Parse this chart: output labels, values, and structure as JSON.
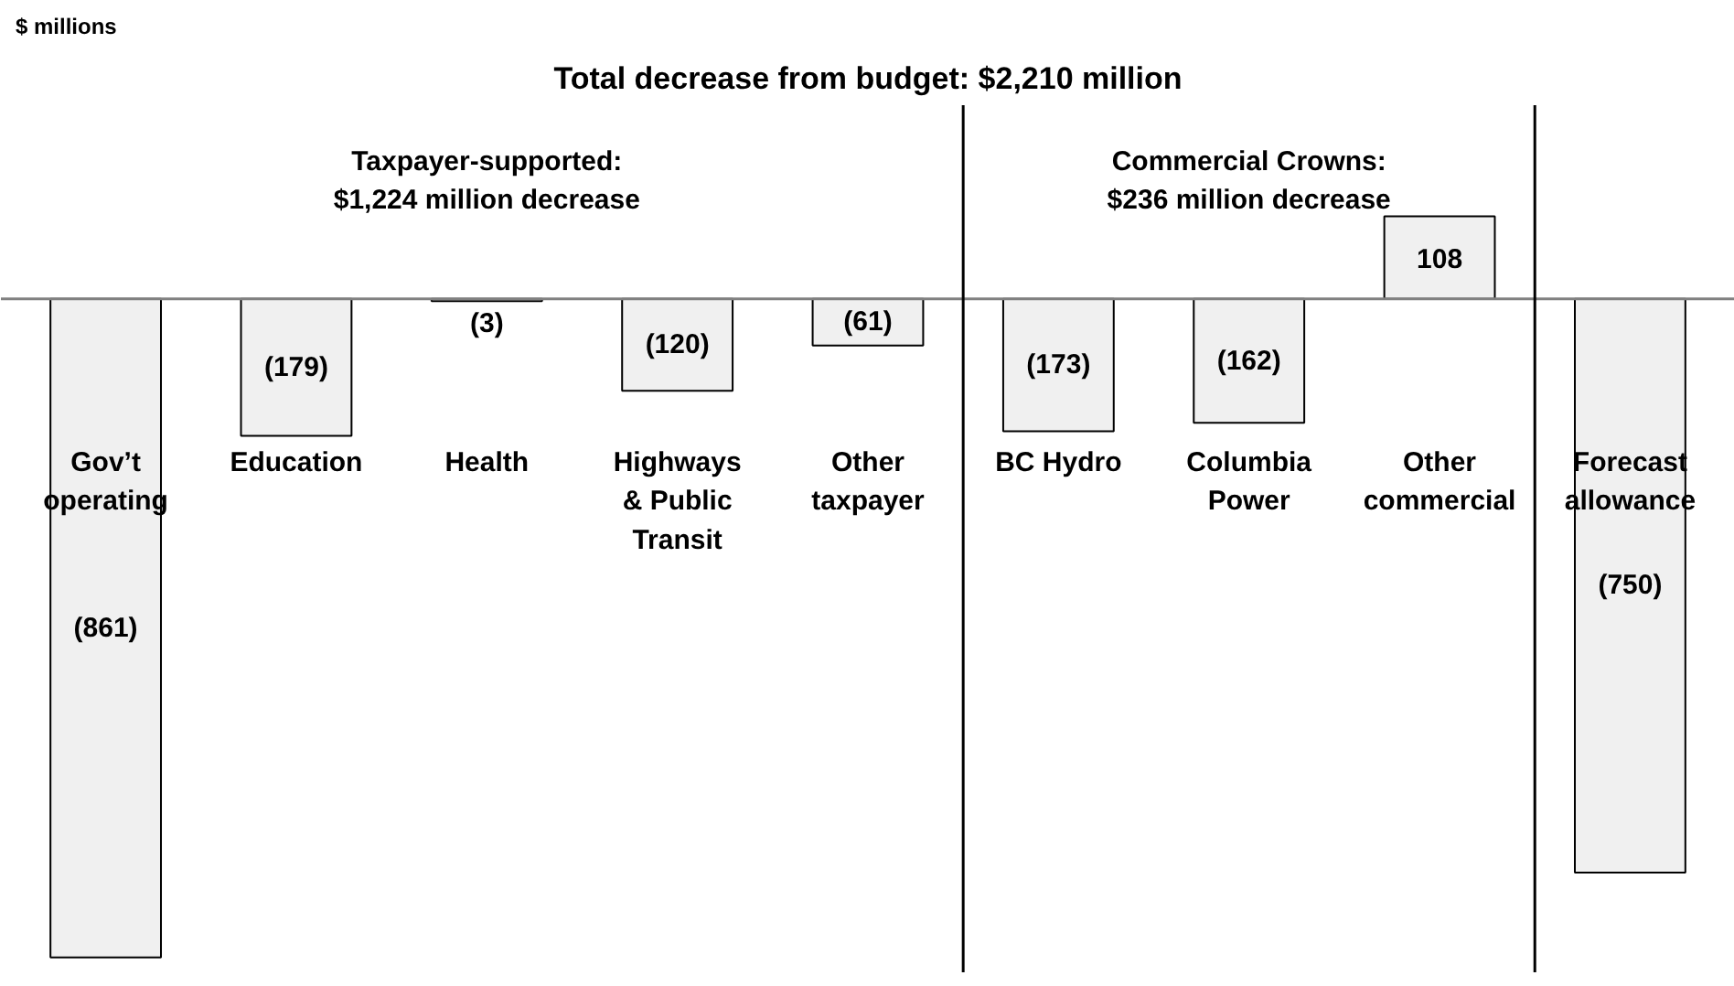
{
  "chart_data": {
    "type": "bar",
    "subtitle": "Total decrease from budget: $2,210 million",
    "categories": [
      "Gov’t\noperating",
      "Education",
      "Health",
      "Highways\n& Public\nTransit",
      "Other\ntaxpayer",
      "BC Hydro",
      "Columbia\nPower",
      "Other\ncommercial",
      "Forecast\nallowance"
    ],
    "values": [
      -861,
      -179,
      -3,
      -120,
      -61,
      -173,
      -162,
      108,
      -750
    ],
    "value_labels": [
      "(861)",
      "(179)",
      "(3)",
      "(120)",
      "(61)",
      "(173)",
      "(162)",
      "108",
      "(750)"
    ],
    "color": "#f0f0f0",
    "annotations": [
      "$ millions",
      "Taxpayer-supported:\n$1,224 million decrease",
      "Commercial Crowns:\n$236 million decrease"
    ]
  }
}
